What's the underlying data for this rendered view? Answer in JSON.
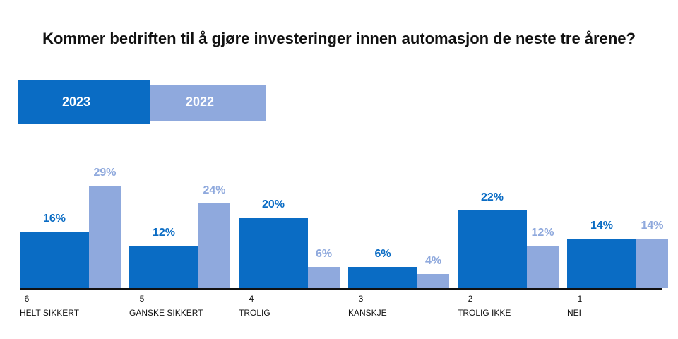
{
  "chart_data": {
    "type": "bar",
    "title": "Kommer bedriften til å gjøre investeringer innen automasjon de neste tre årene?",
    "category_numbers": [
      "6",
      "5",
      "4",
      "3",
      "2",
      "1"
    ],
    "categories": [
      "HELT SIKKERT",
      "GANSKE SIKKERT",
      "TROLIG",
      "KANSKJE",
      "TROLIG IKKE",
      "NEI"
    ],
    "series": [
      {
        "name": "2023",
        "color": "#0a6cc4",
        "values": [
          16,
          12,
          20,
          6,
          22,
          14
        ],
        "value_labels": [
          "16%",
          "12%",
          "20%",
          "6%",
          "22%",
          "14%"
        ]
      },
      {
        "name": "2022",
        "color": "#8fa9dd",
        "values": [
          29,
          24,
          6,
          4,
          12,
          14
        ],
        "value_labels": [
          "29%",
          "24%",
          "6%",
          "4%",
          "12%",
          "14%"
        ]
      }
    ]
  }
}
